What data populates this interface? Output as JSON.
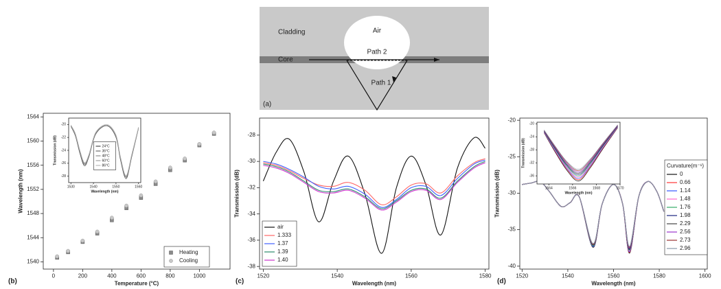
{
  "diagram": {
    "cladding": "Cladding",
    "air": "Air",
    "path2": "Path 2",
    "core": "Core",
    "path1": "Path 1",
    "panel_label": "(a)"
  },
  "chart_data": [
    {
      "type": "scatter",
      "panel_label": "(b)",
      "xlabel": "Temperature (°C)",
      "ylabel": "Wavelength (nm)",
      "x": [
        25,
        100,
        200,
        300,
        400,
        500,
        600,
        700,
        800,
        900,
        1000,
        1100
      ],
      "series": [
        {
          "name": "Heating",
          "color": "#8a8a8a",
          "marker": "square",
          "values": [
            1540.7,
            1541.6,
            1543.3,
            1544.7,
            1546.9,
            1548.9,
            1550.6,
            1552.9,
            1555.2,
            1556.8,
            1559.3,
            1561.2
          ]
        },
        {
          "name": "Cooling",
          "color": "#c8c8c8",
          "marker": "circle",
          "values": [
            1540.9,
            1541.8,
            1543.5,
            1545.0,
            1547.3,
            1549.3,
            1551.0,
            1553.3,
            1555.6,
            1557.1,
            1559.5,
            1561.4
          ]
        }
      ],
      "xlim": [
        -70,
        1210
      ],
      "xticks": [
        0,
        200,
        400,
        600,
        800,
        1000
      ],
      "ylim": [
        1538.8,
        1564.6
      ],
      "yticks": [
        1540,
        1544,
        1548,
        1552,
        1556,
        1560,
        1564
      ],
      "legend": "lower right"
    },
    {
      "type": "line",
      "xlabel": "Wavelength (nm)",
      "ylabel": "Transmission (dB)",
      "x": [
        1530,
        1532,
        1534,
        1536,
        1538,
        1541,
        1546,
        1550,
        1552,
        1554.5,
        1557,
        1560
      ],
      "series": [
        {
          "name": "24°C",
          "color": "#4a4a4a",
          "values": [
            -20.3,
            -21.8,
            -24.5,
            -26.4,
            -25.0,
            -21.5,
            -20.2,
            -22.0,
            -25.5,
            -28.4,
            -25.0,
            -20.6
          ]
        },
        {
          "name": "36°C",
          "color": "#6a6a6a",
          "values": [
            -20.2,
            -21.7,
            -24.3,
            -26.2,
            -24.9,
            -21.4,
            -20.2,
            -21.9,
            -25.3,
            -28.2,
            -24.9,
            -20.5
          ]
        },
        {
          "name": "48°C",
          "color": "#8a8a8a",
          "values": [
            -20.2,
            -21.6,
            -24.2,
            -26.1,
            -24.8,
            -21.3,
            -20.1,
            -21.8,
            -25.2,
            -28.1,
            -24.8,
            -20.5
          ]
        },
        {
          "name": "60°C",
          "color": "#a0a0a0",
          "values": [
            -20.1,
            -21.5,
            -24.1,
            -26.0,
            -24.7,
            -21.3,
            -20.1,
            -21.7,
            -25.1,
            -28.0,
            -24.7,
            -20.4
          ]
        },
        {
          "name": "86°C",
          "color": "#b8b8b8",
          "values": [
            -20.1,
            -21.4,
            -24.0,
            -25.9,
            -24.6,
            -21.2,
            -20.0,
            -21.6,
            -25.0,
            -27.9,
            -24.6,
            -20.4
          ]
        }
      ],
      "xlim": [
        1529,
        1561
      ],
      "xticks": [
        1530,
        1540,
        1550,
        1560
      ],
      "ylim": [
        -29,
        -19
      ],
      "yticks": [
        -20,
        -22,
        -24,
        -26,
        -28
      ],
      "legend": "center"
    },
    {
      "type": "line",
      "panel_label": "(c)",
      "xlabel": "Wavelength (nm)",
      "ylabel": "Transmission (dB)",
      "x": [
        1520,
        1523.5,
        1527,
        1531,
        1535,
        1539,
        1543,
        1547.5,
        1552,
        1556,
        1560,
        1564,
        1568,
        1572.5,
        1577,
        1580
      ],
      "series": [
        {
          "name": "air",
          "color": "#111111",
          "values": [
            -31.5,
            -29.3,
            -28.3,
            -30.8,
            -34.6,
            -31.5,
            -29.6,
            -32.5,
            -37.0,
            -32.0,
            -29.6,
            -31.8,
            -35.6,
            -30.5,
            -28.2,
            -29.0
          ]
        },
        {
          "name": "1.333",
          "color": "#ff6666",
          "values": [
            -30.1,
            -30.3,
            -30.7,
            -31.3,
            -31.8,
            -31.9,
            -31.6,
            -32.2,
            -33.3,
            -32.7,
            -31.8,
            -31.7,
            -32.4,
            -31.1,
            -30.1,
            -29.8
          ]
        },
        {
          "name": "1.37",
          "color": "#3f5fff",
          "values": [
            -30.0,
            -30.2,
            -30.6,
            -31.2,
            -31.9,
            -32.1,
            -31.9,
            -32.5,
            -33.5,
            -32.9,
            -32.0,
            -31.9,
            -32.6,
            -31.3,
            -30.2,
            -29.9
          ]
        },
        {
          "name": "1.39",
          "color": "#2a8a6a",
          "values": [
            -30.2,
            -30.4,
            -30.8,
            -31.5,
            -32.2,
            -32.3,
            -32.1,
            -32.7,
            -33.6,
            -33.0,
            -32.2,
            -32.1,
            -32.8,
            -31.5,
            -30.4,
            -30.0
          ]
        },
        {
          "name": "1.40",
          "color": "#cc33cc",
          "values": [
            -30.3,
            -30.5,
            -30.9,
            -31.6,
            -32.3,
            -32.4,
            -32.2,
            -32.8,
            -33.7,
            -33.1,
            -32.3,
            -32.2,
            -32.9,
            -31.6,
            -30.5,
            -30.1
          ]
        }
      ],
      "xlim": [
        1519,
        1581
      ],
      "xticks": [
        1520,
        1540,
        1560,
        1580
      ],
      "ylim": [
        -38.2,
        -26.7
      ],
      "yticks": [
        -38,
        -36,
        -34,
        -32,
        -30,
        -28
      ],
      "legend": "lower left"
    },
    {
      "type": "line",
      "panel_label": "(d)",
      "xlabel": "Wavelength (nm)",
      "ylabel": "Transmission (dB)",
      "legend_title": "Curvature(m⁻¹)",
      "x": [
        1520,
        1524,
        1528,
        1532,
        1537,
        1541,
        1545,
        1551,
        1555,
        1560,
        1564,
        1567,
        1571,
        1575,
        1579,
        1582
      ],
      "series": [
        {
          "name": "0",
          "color": "#111111",
          "values": [
            -28.8,
            -28.6,
            -28.4,
            -29.8,
            -31.8,
            -31.3,
            -30.5,
            -37.4,
            -31.5,
            -28.8,
            -31.5,
            -38.2,
            -30.5,
            -28.4,
            -29.8,
            -32.5
          ]
        },
        {
          "name": "0.66",
          "color": "#ff3333",
          "values": [
            -28.8,
            -28.6,
            -28.4,
            -29.8,
            -31.8,
            -31.3,
            -30.5,
            -37.3,
            -31.5,
            -28.8,
            -31.5,
            -38.1,
            -30.5,
            -28.4,
            -29.8,
            -32.5
          ]
        },
        {
          "name": "1.14",
          "color": "#3355ff",
          "values": [
            -28.8,
            -28.6,
            -28.4,
            -29.8,
            -31.8,
            -31.3,
            -30.5,
            -37.3,
            -31.5,
            -28.8,
            -31.5,
            -38.0,
            -30.5,
            -28.4,
            -29.8,
            -32.5
          ]
        },
        {
          "name": "1.48",
          "color": "#ff66cc",
          "values": [
            -28.8,
            -28.6,
            -28.4,
            -29.8,
            -31.8,
            -31.3,
            -30.5,
            -37.2,
            -31.5,
            -28.8,
            -31.5,
            -37.9,
            -30.5,
            -28.4,
            -29.8,
            -32.5
          ]
        },
        {
          "name": "1.76",
          "color": "#33aa66",
          "values": [
            -28.8,
            -28.6,
            -28.4,
            -29.8,
            -31.8,
            -31.3,
            -30.5,
            -37.2,
            -31.5,
            -28.8,
            -31.5,
            -37.8,
            -30.5,
            -28.4,
            -29.8,
            -32.5
          ]
        },
        {
          "name": "1.98",
          "color": "#1a237e",
          "values": [
            -28.8,
            -28.6,
            -28.4,
            -29.8,
            -31.8,
            -31.3,
            -30.5,
            -37.1,
            -31.5,
            -28.8,
            -31.5,
            -37.7,
            -30.5,
            -28.4,
            -29.8,
            -32.5
          ]
        },
        {
          "name": "2.29",
          "color": "#444444",
          "values": [
            -28.8,
            -28.6,
            -28.4,
            -29.8,
            -31.8,
            -31.3,
            -30.5,
            -37.1,
            -31.5,
            -28.8,
            -31.5,
            -37.6,
            -30.5,
            -28.4,
            -29.8,
            -32.5
          ]
        },
        {
          "name": "2.56",
          "color": "#9933cc",
          "values": [
            -28.8,
            -28.6,
            -28.4,
            -29.8,
            -31.8,
            -31.3,
            -30.5,
            -37.0,
            -31.5,
            -28.8,
            -31.5,
            -37.5,
            -30.5,
            -28.4,
            -29.8,
            -32.5
          ]
        },
        {
          "name": "2.73",
          "color": "#993333",
          "values": [
            -28.8,
            -28.6,
            -28.4,
            -29.8,
            -31.8,
            -31.3,
            -30.5,
            -37.0,
            -31.5,
            -28.8,
            -31.5,
            -37.4,
            -30.5,
            -28.4,
            -29.8,
            -32.5
          ]
        },
        {
          "name": "2.96",
          "color": "#8899aa",
          "values": [
            -28.8,
            -28.6,
            -28.4,
            -29.8,
            -31.8,
            -31.3,
            -30.5,
            -36.9,
            -31.5,
            -28.8,
            -31.5,
            -37.3,
            -30.5,
            -28.4,
            -29.8,
            -32.5
          ]
        }
      ],
      "xlim": [
        1519,
        1601
      ],
      "xticks": [
        1520,
        1540,
        1560,
        1580,
        1600
      ],
      "ylim": [
        -40.4,
        -19.7
      ],
      "yticks": [
        -40,
        -35,
        -30,
        -25,
        -20
      ],
      "legend": "center right"
    },
    {
      "type": "line",
      "xlabel": "Wavelength (nm)",
      "ylabel": "Transmission (dB)",
      "x": [
        1563.6,
        1564.5,
        1565.5,
        1566.5,
        1567.5,
        1568.5,
        1569.8
      ],
      "series": [
        {
          "color": "#111111",
          "values": [
            -22.8,
            -28.5,
            -34.2,
            -37.6,
            -33.5,
            -28.0,
            -21.2
          ]
        },
        {
          "color": "#ff3333",
          "values": [
            -22.7,
            -28.3,
            -33.9,
            -37.2,
            -33.2,
            -27.8,
            -21.1
          ]
        },
        {
          "color": "#3355ff",
          "values": [
            -22.6,
            -28.1,
            -33.6,
            -36.8,
            -32.9,
            -27.6,
            -21.0
          ]
        },
        {
          "color": "#ff66cc",
          "values": [
            -22.5,
            -27.9,
            -33.3,
            -36.4,
            -32.6,
            -27.4,
            -20.9
          ]
        },
        {
          "color": "#33aa66",
          "values": [
            -22.4,
            -27.7,
            -33.0,
            -36.0,
            -32.3,
            -27.2,
            -20.8
          ]
        },
        {
          "color": "#1a237e",
          "values": [
            -22.3,
            -27.5,
            -32.7,
            -35.6,
            -32.0,
            -27.0,
            -20.7
          ]
        },
        {
          "color": "#444444",
          "values": [
            -22.2,
            -27.3,
            -32.4,
            -35.2,
            -31.7,
            -26.8,
            -20.6
          ]
        },
        {
          "color": "#9933cc",
          "values": [
            -22.1,
            -27.1,
            -32.1,
            -34.8,
            -31.4,
            -26.6,
            -20.5
          ]
        },
        {
          "color": "#993333",
          "values": [
            -22.0,
            -26.9,
            -31.8,
            -34.4,
            -31.1,
            -26.4,
            -20.4
          ]
        },
        {
          "color": "#8899aa",
          "values": [
            -21.9,
            -26.7,
            -31.5,
            -34.0,
            -30.8,
            -26.2,
            -20.3
          ]
        }
      ],
      "xlim": [
        1563,
        1570
      ],
      "xticks": [
        1564,
        1566,
        1568,
        1570
      ],
      "ylim": [
        -38.5,
        -19.5
      ],
      "yticks": [
        -20,
        -24,
        -28,
        -32,
        -36
      ],
      "legend": "none"
    }
  ]
}
